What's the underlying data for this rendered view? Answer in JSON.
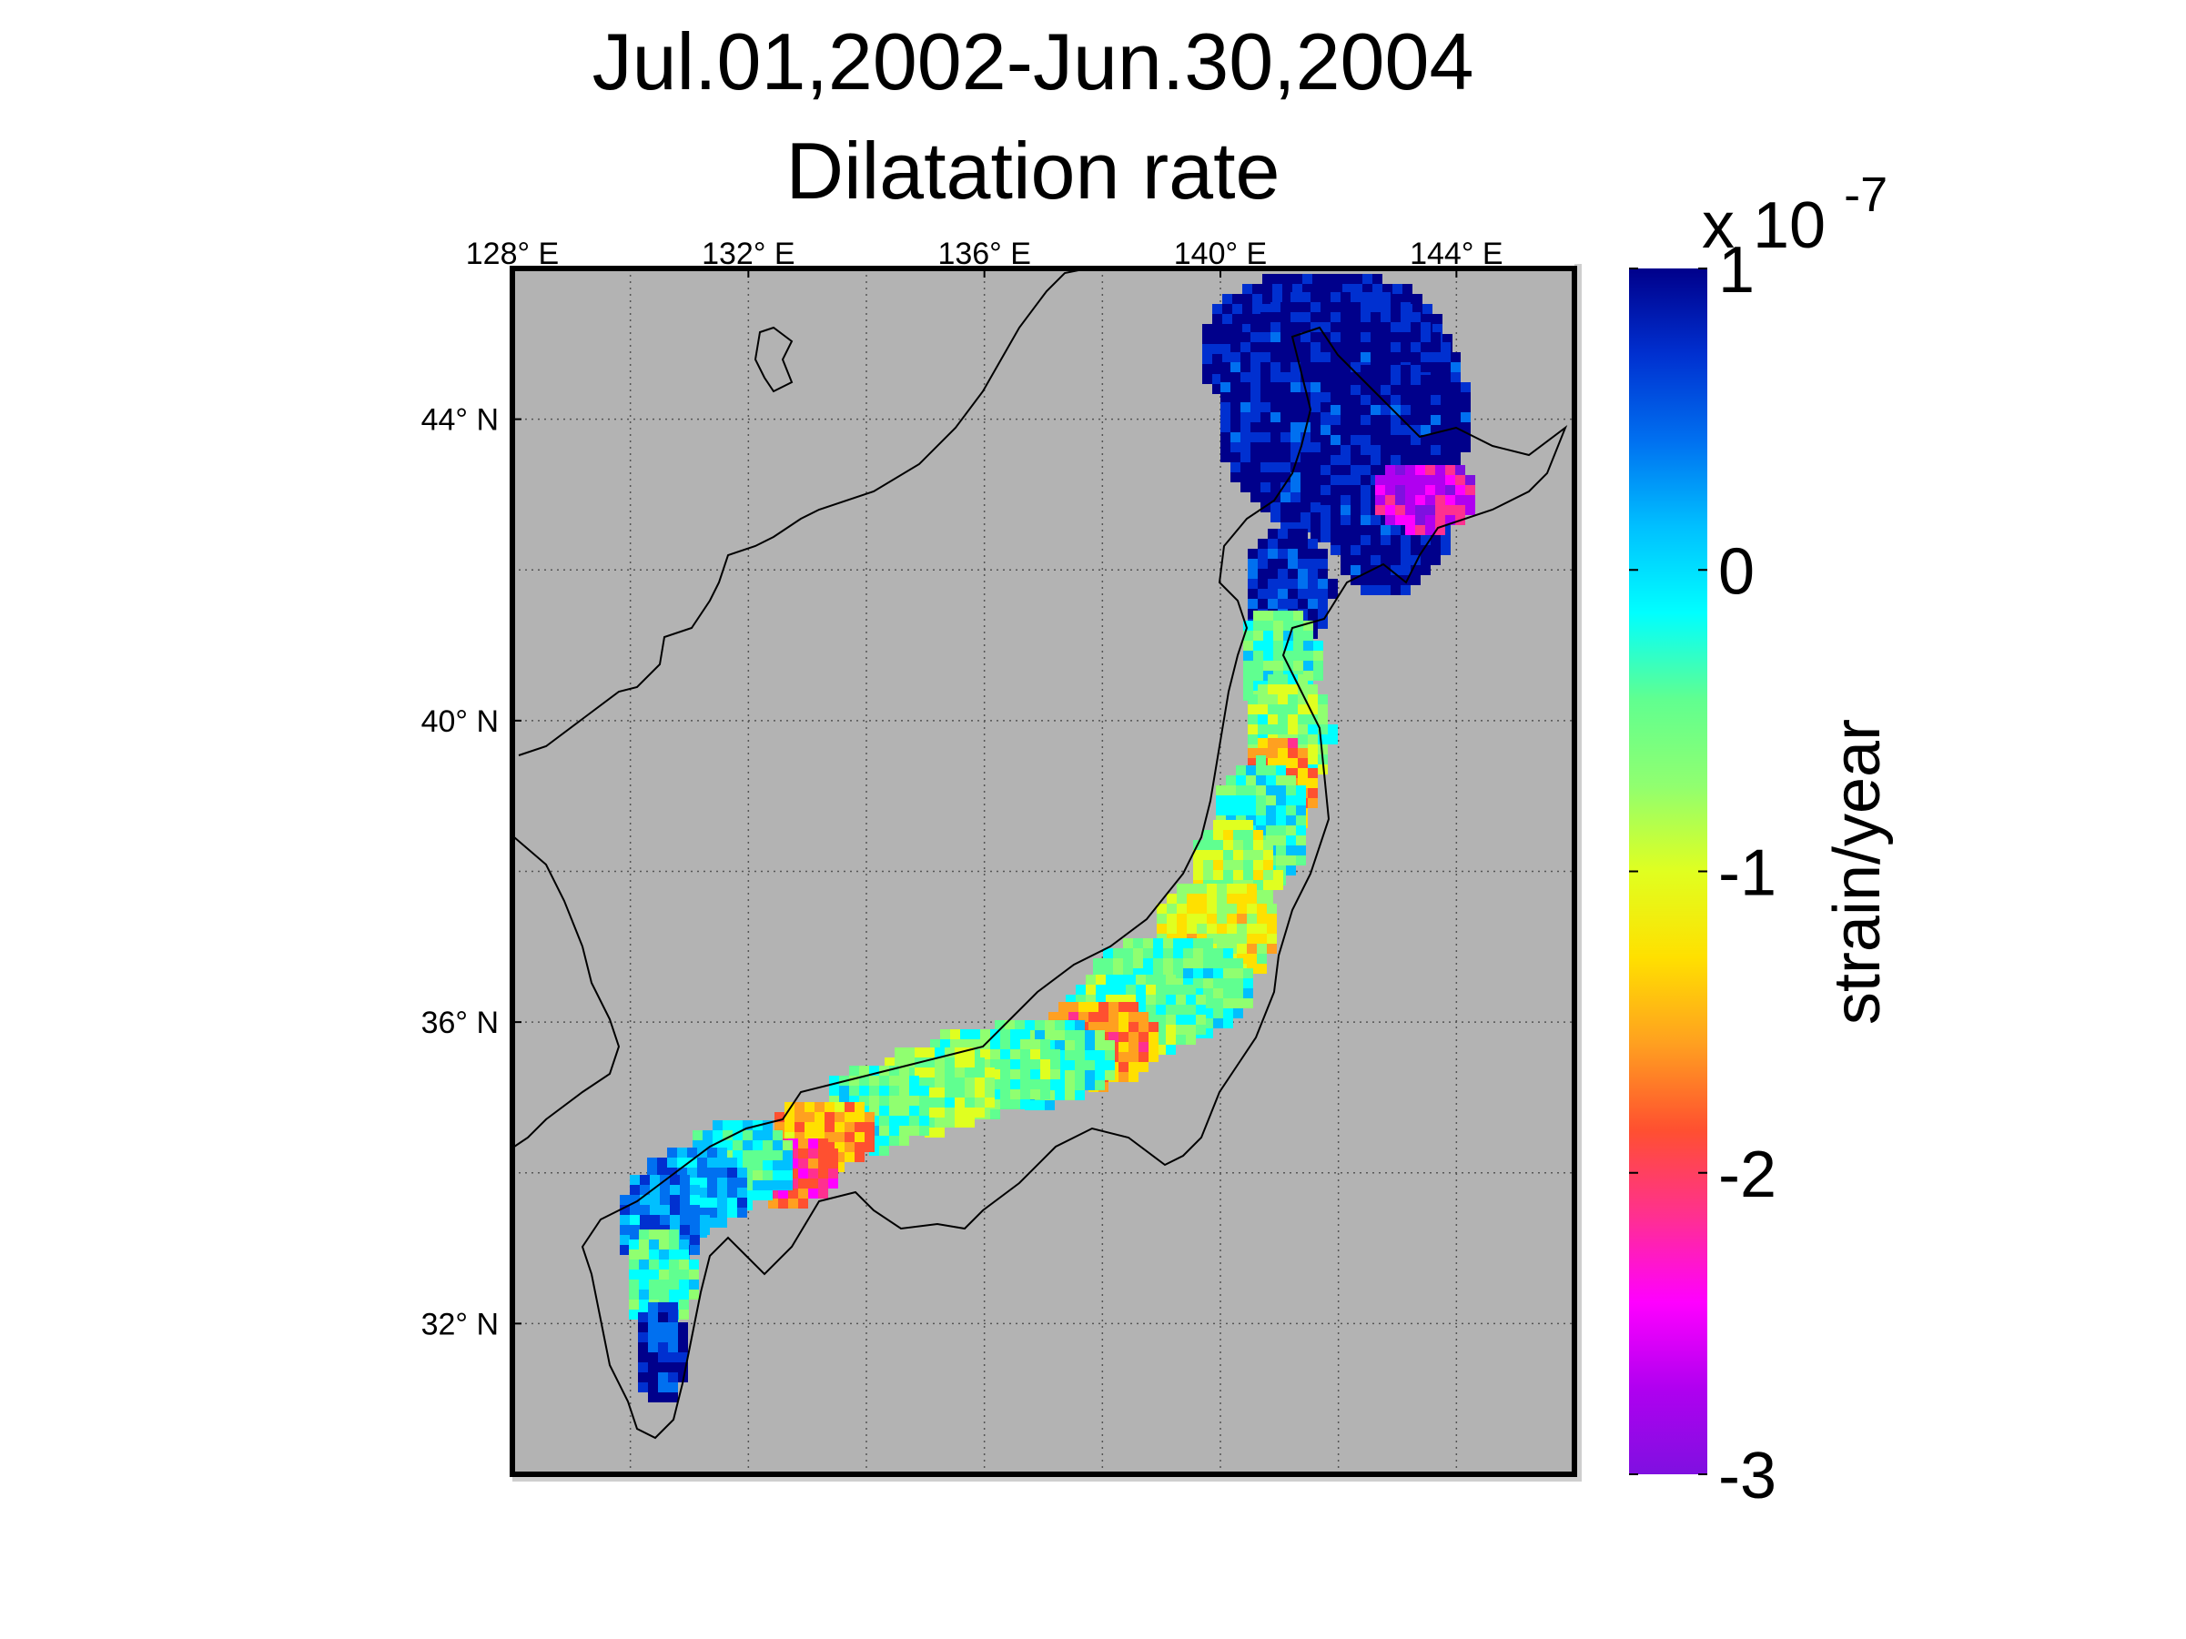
{
  "title": {
    "line1": "Jul.01,2002-Jun.30,2004",
    "line2": "Dilatation rate"
  },
  "map": {
    "background_color": "#b3b3b3",
    "lon_ticks": [
      {
        "value": 128,
        "label": "128",
        "suffix": "E"
      },
      {
        "value": 132,
        "label": "132",
        "suffix": "E"
      },
      {
        "value": 136,
        "label": "136",
        "suffix": "E"
      },
      {
        "value": 140,
        "label": "140",
        "suffix": "E"
      },
      {
        "value": 144,
        "label": "144",
        "suffix": "E"
      }
    ],
    "lat_ticks": [
      {
        "value": 44,
        "label": "44",
        "suffix": "N"
      },
      {
        "value": 40,
        "label": "40",
        "suffix": "N"
      },
      {
        "value": 36,
        "label": "36",
        "suffix": "N"
      },
      {
        "value": 32,
        "label": "32",
        "suffix": "N"
      }
    ],
    "degree_mark": "°",
    "lon_range": [
      128,
      146
    ],
    "lat_range": [
      30,
      46
    ]
  },
  "colorbar": {
    "exponent_label": "x 10",
    "exponent_power": "-7",
    "unit_label": "strain/year",
    "range": [
      -3,
      1
    ],
    "ticks": [
      {
        "value": 1,
        "label": "1"
      },
      {
        "value": 0,
        "label": "0"
      },
      {
        "value": -1,
        "label": "-1"
      },
      {
        "value": -2,
        "label": "-2"
      },
      {
        "value": -3,
        "label": "-3"
      }
    ],
    "colors": [
      "#7f10e0",
      "#b000f0",
      "#ff00ff",
      "#ff3090",
      "#ff5030",
      "#ffa020",
      "#ffe000",
      "#e0ff20",
      "#90ff70",
      "#60ff90",
      "#00ffff",
      "#00c0ff",
      "#0070f0",
      "#0030d0",
      "#00008b"
    ]
  }
}
